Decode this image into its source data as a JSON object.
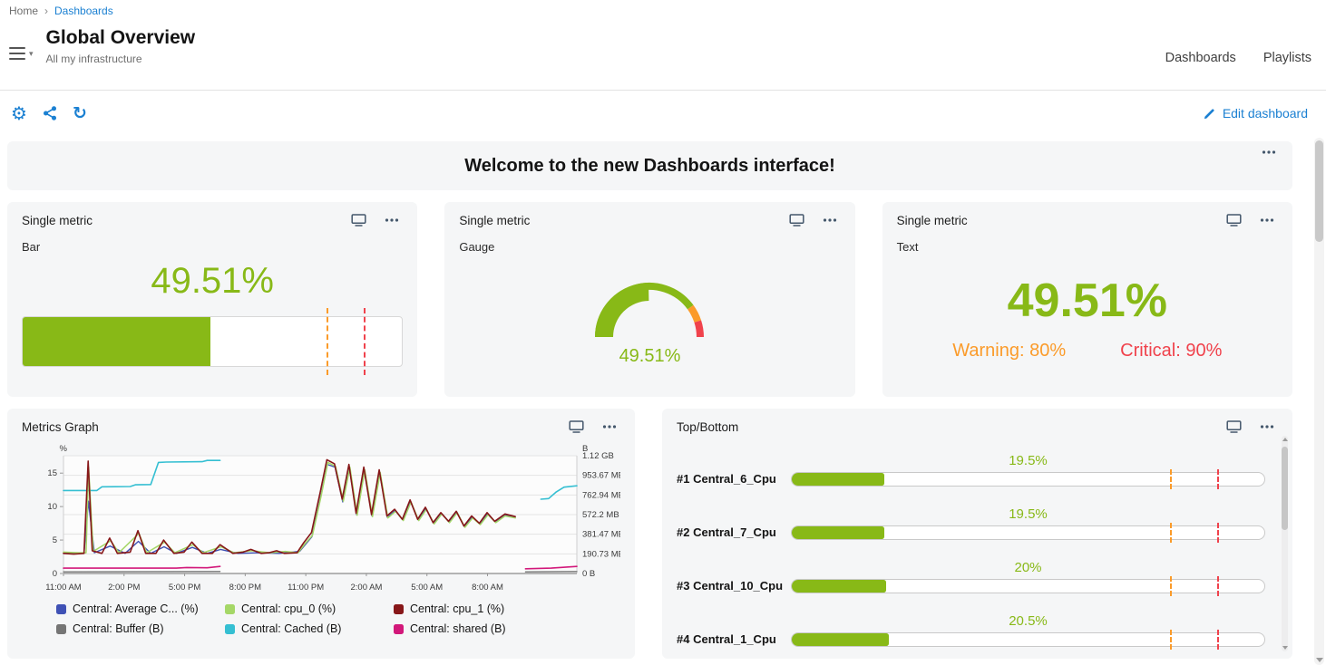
{
  "colors": {
    "green": "#88B917",
    "orange": "#FB9B2A",
    "red": "#F0424C",
    "blue": "#1B80D2",
    "icon_dark": "#44576B"
  },
  "breadcrumb": {
    "home": "Home",
    "separator": ">",
    "current": "Dashboards"
  },
  "header": {
    "title": "Global Overview",
    "subtitle": "All my infrastructure",
    "tabs": [
      {
        "label": "Dashboards"
      },
      {
        "label": "Playlists"
      }
    ]
  },
  "toolbar": {
    "edit_label": "Edit dashboard"
  },
  "welcome": {
    "text": "Welcome to the new Dashboards interface!"
  },
  "panels": {
    "bar": {
      "title": "Single metric",
      "subtitle": "Bar",
      "value": "49.51%",
      "percent": 49.51,
      "warning_pct": 80,
      "critical_pct": 90
    },
    "gauge": {
      "title": "Single metric",
      "subtitle": "Gauge",
      "value": "49.51%",
      "percent": 49.51,
      "warning_pct": 80,
      "critical_pct": 90
    },
    "text": {
      "title": "Single metric",
      "subtitle": "Text",
      "value": "49.51%",
      "warning_label": "Warning: 80%",
      "critical_label": "Critical: 90%"
    }
  },
  "metrics_graph": {
    "title": "Metrics Graph",
    "legend": [
      {
        "label": "Central: Average C... (%)",
        "color": "#3F51B5"
      },
      {
        "label": "Central: cpu_0 (%)",
        "color": "#A5D767"
      },
      {
        "label": "Central: cpu_1 (%)",
        "color": "#871719"
      },
      {
        "label": "Central: Buffer (B)",
        "color": "#757575"
      },
      {
        "label": "Central: Cached (B)",
        "color": "#35BFD2"
      },
      {
        "label": "Central: shared (B)",
        "color": "#D2187A"
      }
    ],
    "chart_data": {
      "type": "line",
      "x_axis": {
        "labels": [
          "11:00 AM",
          "2:00 PM",
          "5:00 PM",
          "8:00 PM",
          "11:00 PM",
          "2:00 AM",
          "5:00 AM",
          "8:00 AM"
        ],
        "positions_pct": [
          0,
          11.8,
          23.6,
          35.4,
          47.2,
          59,
          70.8,
          82.6
        ]
      },
      "y_left": {
        "unit": "%",
        "ticks": [
          0,
          5,
          10,
          15
        ],
        "max": 17.6
      },
      "y_right": {
        "unit": "B",
        "ticks_bottom_up": [
          "0 B",
          "190.73 MB",
          "381.47 MB",
          "572.2 MB",
          "762.94 MB",
          "953.67 MB",
          "1.12 GB"
        ]
      },
      "note": "series y values are in left-axis (%) visual units; x in % of plot width",
      "series": [
        {
          "name": "Central: Buffer (B)",
          "color": "#757575",
          "width": 1.3,
          "segments": [
            [
              [
                0,
                0.25
              ],
              [
                30.5,
                0.3
              ]
            ],
            [
              [
                90,
                0.25
              ],
              [
                100,
                0.3
              ]
            ]
          ]
        },
        {
          "name": "Central: shared (B)",
          "color": "#D2187A",
          "width": 1.6,
          "segments": [
            [
              [
                0,
                0.8
              ],
              [
                22,
                0.8
              ],
              [
                24,
                0.9
              ],
              [
                28,
                0.85
              ],
              [
                30.5,
                1.05
              ]
            ],
            [
              [
                90,
                0.7
              ],
              [
                95,
                0.8
              ],
              [
                100,
                1.05
              ]
            ]
          ]
        },
        {
          "name": "Central: Cached (B)",
          "color": "#35BFD2",
          "width": 1.6,
          "segments": [
            [
              [
                0,
                12.4
              ],
              [
                6.5,
                12.4
              ],
              [
                7.5,
                12.95
              ],
              [
                13,
                13.0
              ],
              [
                14,
                13.25
              ],
              [
                17,
                13.3
              ],
              [
                18.5,
                16.6
              ],
              [
                20,
                16.65
              ],
              [
                27,
                16.7
              ],
              [
                28,
                16.9
              ],
              [
                30.5,
                16.9
              ]
            ],
            [
              [
                93,
                11.1
              ],
              [
                94.5,
                11.2
              ],
              [
                96,
                12.2
              ],
              [
                97.5,
                12.9
              ],
              [
                100,
                13.1
              ]
            ]
          ]
        },
        {
          "name": "Central: Average C... (%)",
          "color": "#3F51B5",
          "width": 1.4,
          "segments": [
            [
              [
                0,
                3.05
              ],
              [
                4,
                3.0
              ],
              [
                4.85,
                10.8
              ],
              [
                6,
                3.1
              ],
              [
                9.1,
                4.1
              ],
              [
                12,
                3.0
              ],
              [
                14.6,
                4.8
              ],
              [
                17,
                3.0
              ],
              [
                19.6,
                4.0
              ],
              [
                22,
                3.0
              ],
              [
                25.1,
                3.9
              ],
              [
                28,
                3.0
              ],
              [
                30.6,
                3.6
              ],
              [
                34,
                3.0
              ],
              [
                38,
                3.1
              ],
              [
                42,
                3.0
              ],
              [
                46,
                3.3
              ],
              [
                48.4,
                5.5
              ],
              [
                50.1,
                11.5
              ],
              [
                51.4,
                16.3
              ],
              [
                52.9,
                15.9
              ],
              [
                54.4,
                10.7
              ],
              [
                55.7,
                15.7
              ],
              [
                57.1,
                8.8
              ],
              [
                58.6,
                15.3
              ],
              [
                60.1,
                8.6
              ],
              [
                61.6,
                15.0
              ],
              [
                63.1,
                8.4
              ],
              [
                64.6,
                9.4
              ],
              [
                66.1,
                8.0
              ],
              [
                67.6,
                10.8
              ],
              [
                69.1,
                8.0
              ],
              [
                70.6,
                9.7
              ],
              [
                72.1,
                7.5
              ],
              [
                73.6,
                9.0
              ],
              [
                75.1,
                7.7
              ],
              [
                76.6,
                9.2
              ],
              [
                78.1,
                7.0
              ],
              [
                79.6,
                8.4
              ],
              [
                81.1,
                7.4
              ],
              [
                82.6,
                8.9
              ],
              [
                84.1,
                7.7
              ],
              [
                86,
                8.7
              ],
              [
                88,
                8.4
              ]
            ]
          ]
        },
        {
          "name": "Central: cpu_0 (%)",
          "color": "#A5D767",
          "width": 1.5,
          "segments": [
            [
              [
                0,
                3.2
              ],
              [
                3,
                3.1
              ],
              [
                4.4,
                3.1
              ],
              [
                4.9,
                15.9
              ],
              [
                5.8,
                3.3
              ],
              [
                9.2,
                4.9
              ],
              [
                10.8,
                3.1
              ],
              [
                14.7,
                6.0
              ],
              [
                16.2,
                3.1
              ],
              [
                19.7,
                4.7
              ],
              [
                21.7,
                3.1
              ],
              [
                25.2,
                4.3
              ],
              [
                27.2,
                3.1
              ],
              [
                30.7,
                4.0
              ],
              [
                33.2,
                3.1
              ],
              [
                36.7,
                3.4
              ],
              [
                40.2,
                3.1
              ],
              [
                43.2,
                3.3
              ],
              [
                45.7,
                3.1
              ],
              [
                47,
                4.4
              ],
              [
                48.5,
                5.7
              ],
              [
                50.2,
                11.6
              ],
              [
                51.5,
                16.6
              ],
              [
                53,
                16.0
              ],
              [
                54.5,
                10.8
              ],
              [
                55.8,
                15.9
              ],
              [
                57.2,
                8.7
              ],
              [
                58.7,
                15.5
              ],
              [
                60.2,
                8.5
              ],
              [
                61.7,
                15.1
              ],
              [
                63.2,
                8.3
              ],
              [
                64.7,
                9.3
              ],
              [
                66.2,
                7.9
              ],
              [
                67.7,
                10.7
              ],
              [
                69.2,
                7.9
              ],
              [
                70.7,
                9.6
              ],
              [
                72.2,
                7.4
              ],
              [
                73.7,
                8.9
              ],
              [
                75.2,
                7.6
              ],
              [
                76.7,
                9.1
              ],
              [
                78.2,
                6.9
              ],
              [
                79.7,
                8.3
              ],
              [
                81.2,
                7.3
              ],
              [
                82.7,
                8.8
              ],
              [
                84.2,
                7.6
              ],
              [
                86,
                8.6
              ],
              [
                88,
                8.3
              ]
            ]
          ]
        },
        {
          "name": "Central: cpu_1 (%)",
          "color": "#871719",
          "width": 1.6,
          "segments": [
            [
              [
                0,
                3.0
              ],
              [
                2,
                2.9
              ],
              [
                4,
                3.0
              ],
              [
                4.8,
                16.8
              ],
              [
                5.6,
                3.4
              ],
              [
                7.5,
                3.0
              ],
              [
                9,
                5.3
              ],
              [
                10.5,
                3.0
              ],
              [
                13,
                3.2
              ],
              [
                14.5,
                6.4
              ],
              [
                16,
                3.0
              ],
              [
                18,
                3.0
              ],
              [
                19.5,
                5.0
              ],
              [
                21.5,
                3.0
              ],
              [
                23.5,
                3.2
              ],
              [
                25,
                4.7
              ],
              [
                27,
                3.0
              ],
              [
                29,
                3.0
              ],
              [
                30.5,
                4.3
              ],
              [
                33,
                3.0
              ],
              [
                35,
                3.2
              ],
              [
                36.5,
                3.6
              ],
              [
                38.5,
                3.0
              ],
              [
                40,
                3.1
              ],
              [
                41.5,
                3.4
              ],
              [
                43,
                3.0
              ],
              [
                45.5,
                3.1
              ],
              [
                46.8,
                4.6
              ],
              [
                48.3,
                6.1
              ],
              [
                50,
                12.1
              ],
              [
                51.3,
                17.0
              ],
              [
                52.8,
                16.4
              ],
              [
                54.3,
                11.1
              ],
              [
                55.6,
                16.3
              ],
              [
                57,
                9.0
              ],
              [
                58.5,
                15.9
              ],
              [
                60,
                8.8
              ],
              [
                61.5,
                15.5
              ],
              [
                63,
                8.6
              ],
              [
                64.5,
                9.6
              ],
              [
                66,
                8.1
              ],
              [
                67.5,
                11.0
              ],
              [
                69,
                8.1
              ],
              [
                70.5,
                9.9
              ],
              [
                72,
                7.6
              ],
              [
                73.5,
                9.1
              ],
              [
                75,
                7.8
              ],
              [
                76.5,
                9.3
              ],
              [
                78,
                7.1
              ],
              [
                79.5,
                8.6
              ],
              [
                81,
                7.5
              ],
              [
                82.5,
                9.1
              ],
              [
                84,
                7.8
              ],
              [
                86,
                8.9
              ],
              [
                88,
                8.5
              ]
            ]
          ]
        }
      ]
    }
  },
  "top_bottom": {
    "title": "Top/Bottom",
    "warning_pct": 80,
    "critical_pct": 90,
    "items": [
      {
        "label": "#1 Central_6_Cpu",
        "value": "19.5%",
        "pct": 19.5
      },
      {
        "label": "#2 Central_7_Cpu",
        "value": "19.5%",
        "pct": 19.5
      },
      {
        "label": "#3 Central_10_Cpu",
        "value": "20%",
        "pct": 20
      },
      {
        "label": "#4 Central_1_Cpu",
        "value": "20.5%",
        "pct": 20.5
      }
    ]
  }
}
